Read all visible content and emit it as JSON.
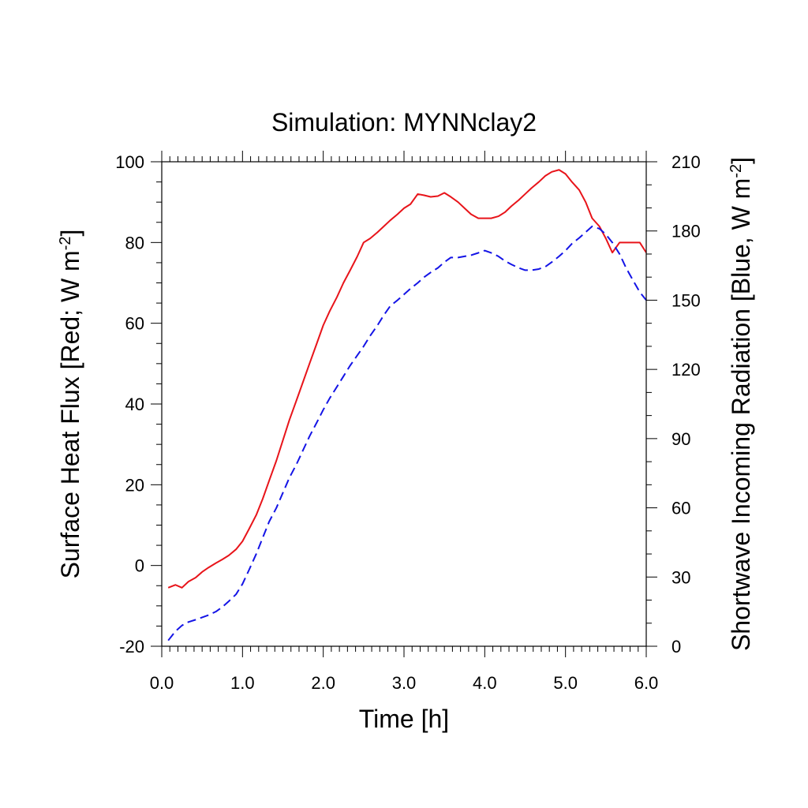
{
  "chart_data": {
    "type": "line",
    "title": "Simulation: MYNNclay2",
    "xlabel": "Time [h]",
    "ylabel_left": {
      "text": "Surface Heat Flux [Red; W m",
      "sup": "-2",
      "end": "]"
    },
    "ylabel_right": {
      "text": "Shortwave Incoming Radiation [Blue, W m",
      "sup": "-2",
      "end": "]"
    },
    "xlim": [
      0,
      6
    ],
    "ylim_left": [
      -20,
      100
    ],
    "ylim_right": [
      0,
      210
    ],
    "x_ticks": [
      0,
      1,
      2,
      3,
      4,
      5,
      6
    ],
    "x_tick_labels": [
      "0.0",
      "1.0",
      "2.0",
      "3.0",
      "4.0",
      "5.0",
      "6.0"
    ],
    "y_left_ticks": [
      -20,
      0,
      20,
      40,
      60,
      80,
      100
    ],
    "y_left_tick_labels": [
      "-20",
      "0",
      "20",
      "40",
      "60",
      "80",
      "100"
    ],
    "y_right_ticks": [
      0,
      30,
      60,
      90,
      120,
      150,
      180,
      210
    ],
    "y_right_tick_labels": [
      "0",
      "30",
      "60",
      "90",
      "120",
      "150",
      "180",
      "210"
    ],
    "grid": false,
    "series": [
      {
        "axis": "left",
        "color": "#e8141a",
        "style": "solid",
        "x": [
          0.08,
          0.17,
          0.25,
          0.33,
          0.42,
          0.5,
          0.58,
          0.67,
          0.75,
          0.83,
          0.92,
          1.0,
          1.08,
          1.17,
          1.25,
          1.33,
          1.42,
          1.5,
          1.58,
          1.67,
          1.75,
          1.83,
          1.92,
          2.0,
          2.08,
          2.17,
          2.25,
          2.33,
          2.42,
          2.5,
          2.58,
          2.67,
          2.75,
          2.83,
          2.92,
          3.0,
          3.08,
          3.17,
          3.25,
          3.33,
          3.42,
          3.5,
          3.58,
          3.67,
          3.75,
          3.83,
          3.92,
          4.0,
          4.08,
          4.17,
          4.25,
          4.33,
          4.42,
          4.5,
          4.58,
          4.67,
          4.75,
          4.83,
          4.92,
          5.0,
          5.08,
          5.17,
          5.25,
          5.33,
          5.42,
          5.5,
          5.58,
          5.67,
          5.75,
          5.83,
          5.92,
          6.0
        ],
        "y": [
          -5.5,
          -4.8,
          -5.5,
          -4.0,
          -3.0,
          -1.6,
          -0.5,
          0.6,
          1.5,
          2.5,
          4.0,
          6.0,
          9.0,
          12.5,
          16.5,
          21.0,
          26.0,
          31.0,
          36.0,
          41.0,
          45.5,
          50.0,
          55.0,
          59.5,
          63.0,
          66.5,
          70.0,
          73.0,
          76.5,
          80.0,
          81.0,
          82.5,
          84.0,
          85.5,
          87.0,
          88.5,
          89.5,
          92.0,
          91.7,
          91.3,
          91.5,
          92.3,
          91.3,
          90.0,
          88.5,
          87.0,
          86.0,
          86.0,
          86.0,
          86.5,
          87.5,
          89.0,
          90.5,
          92.0,
          93.5,
          95.0,
          96.5,
          97.5,
          98.0,
          97.0,
          95.0,
          93.0,
          90.0,
          86.0,
          84.0,
          81.0,
          77.5,
          80.0,
          80.0,
          80.0,
          80.0,
          77.5
        ]
      },
      {
        "axis": "right",
        "color": "#1414e6",
        "style": "dashed",
        "x": [
          0.08,
          0.17,
          0.25,
          0.33,
          0.42,
          0.5,
          0.58,
          0.67,
          0.75,
          0.83,
          0.92,
          1.0,
          1.08,
          1.17,
          1.25,
          1.33,
          1.42,
          1.5,
          1.58,
          1.67,
          1.75,
          1.83,
          1.92,
          2.0,
          2.08,
          2.17,
          2.25,
          2.33,
          2.42,
          2.5,
          2.58,
          2.67,
          2.75,
          2.83,
          2.92,
          3.0,
          3.08,
          3.17,
          3.25,
          3.33,
          3.42,
          3.5,
          3.58,
          3.67,
          3.75,
          3.83,
          3.92,
          4.0,
          4.08,
          4.17,
          4.25,
          4.33,
          4.42,
          4.5,
          4.58,
          4.67,
          4.75,
          4.83,
          4.92,
          5.0,
          5.08,
          5.17,
          5.25,
          5.33,
          5.42,
          5.5,
          5.58,
          5.67,
          5.75,
          5.83,
          5.92,
          6.0
        ],
        "y": [
          2.5,
          6.5,
          9.0,
          10.5,
          11.5,
          12.5,
          13.5,
          15.0,
          17.0,
          19.5,
          22.5,
          27.0,
          33.0,
          40.0,
          47.0,
          54.0,
          60.0,
          66.5,
          73.0,
          79.0,
          85.0,
          91.0,
          97.0,
          102.5,
          107.5,
          112.5,
          117.0,
          121.5,
          126.0,
          130.0,
          134.5,
          139.0,
          143.5,
          147.5,
          150.0,
          152.5,
          155.0,
          157.5,
          160.0,
          162.0,
          164.0,
          166.5,
          168.5,
          168.5,
          169.0,
          169.5,
          170.5,
          171.5,
          170.5,
          169.0,
          167.0,
          165.5,
          164.0,
          163.0,
          163.0,
          163.5,
          164.5,
          166.5,
          169.0,
          171.5,
          174.5,
          177.0,
          179.5,
          182.0,
          181.0,
          178.5,
          175.0,
          170.0,
          164.0,
          159.0,
          153.5,
          150.0
        ]
      }
    ]
  }
}
